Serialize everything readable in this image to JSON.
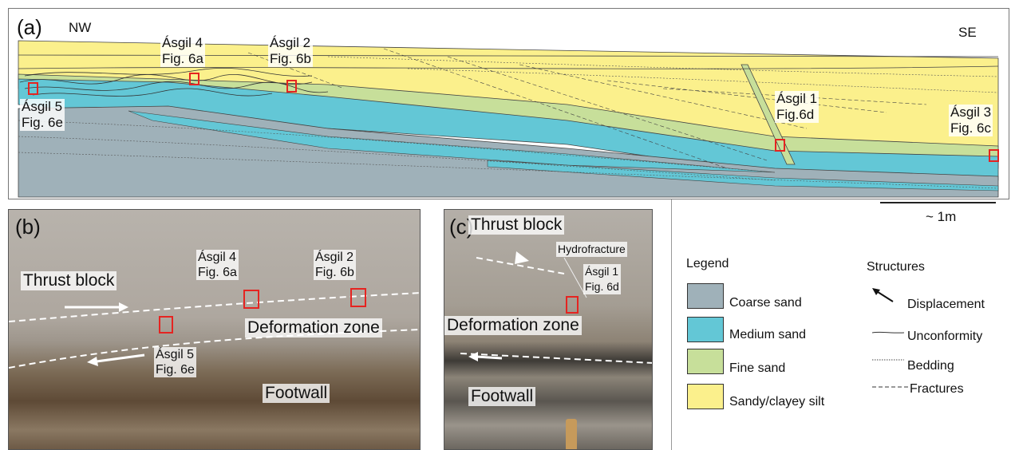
{
  "panel_a": {
    "letter": "(a)",
    "nw": "NW",
    "se": "SE",
    "labels": [
      {
        "line1": "Ásgil 4",
        "line2": "Fig. 6a"
      },
      {
        "line1": "Ásgil 2",
        "line2": "Fig. 6b"
      },
      {
        "line1": "Ásgil 5",
        "line2": "Fig. 6e"
      },
      {
        "line1": "Ásgil 1",
        "line2": "Fig.6d"
      },
      {
        "line1": "Ásgil 3",
        "line2": "Fig. 6c"
      }
    ],
    "scale": "~ 1m"
  },
  "panel_b": {
    "letter": "(b)",
    "thrust_block": "Thrust block",
    "deformation_zone": "Deformation zone",
    "footwall": "Footwall",
    "labels": [
      {
        "line1": "Ásgil 4",
        "line2": "Fig. 6a"
      },
      {
        "line1": "Ásgil 2",
        "line2": "Fig. 6b"
      },
      {
        "line1": "Ásgil 5",
        "line2": "Fig. 6e"
      }
    ]
  },
  "panel_c": {
    "letter": "(c)",
    "thrust_block": "Thrust block",
    "hydrofracture": "Hydrofracture",
    "deformation_zone": "Deformation zone",
    "footwall": "Footwall",
    "label": {
      "line1": "Ásgil 1",
      "line2": "Fig. 6d"
    }
  },
  "legend": {
    "title": "Legend",
    "items": [
      {
        "label": "Coarse sand",
        "color": "#9fb1b9"
      },
      {
        "label": "Medium sand",
        "color": "#63c7d6"
      },
      {
        "label": "Fine sand",
        "color": "#c7df9a"
      },
      {
        "label": "Sandy/clayey silt",
        "color": "#fbf08c"
      }
    ]
  },
  "structures": {
    "title": "Structures",
    "items": [
      {
        "label": "Displacement"
      },
      {
        "label": "Unconformity"
      },
      {
        "label": "Bedding"
      },
      {
        "label": "Fractures"
      }
    ]
  }
}
